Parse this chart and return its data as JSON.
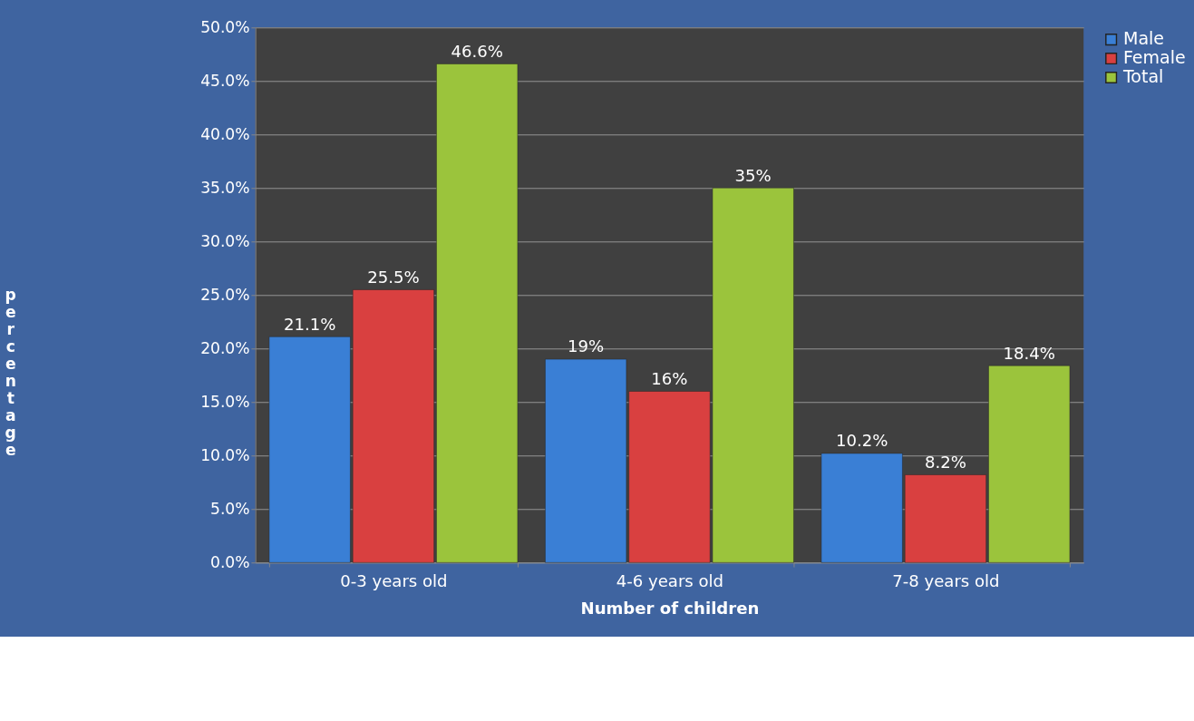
{
  "chart_data": {
    "type": "bar",
    "xlabel": "Number of children",
    "ylabel": "percentage",
    "categories": [
      "0-3 years old",
      "4-6 years old",
      "7-8 years old"
    ],
    "series": [
      {
        "name": "Male",
        "color": "#3a7fd5",
        "values": [
          21.1,
          19,
          10.2
        ],
        "value_labels": [
          "21.1%",
          "19%",
          "10.2%"
        ]
      },
      {
        "name": "Female",
        "color": "#d94040",
        "values": [
          25.5,
          16,
          8.2
        ],
        "value_labels": [
          "25.5%",
          "16%",
          "8.2%"
        ]
      },
      {
        "name": "Total",
        "color": "#9bc43c",
        "values": [
          46.6,
          35,
          18.4
        ],
        "value_labels": [
          "46.6%",
          "35%",
          "18.4%"
        ]
      }
    ],
    "ylim": [
      0,
      50
    ],
    "yticks": [
      {
        "value": 0,
        "label": "0.0%"
      },
      {
        "value": 5,
        "label": "5.0%"
      },
      {
        "value": 10,
        "label": "10.0%"
      },
      {
        "value": 15,
        "label": "15.0%"
      },
      {
        "value": 20,
        "label": "20.0%"
      },
      {
        "value": 25,
        "label": "25.0%"
      },
      {
        "value": 30,
        "label": "30.0%"
      },
      {
        "value": 35,
        "label": "35.0%"
      },
      {
        "value": 40,
        "label": "40.0%"
      },
      {
        "value": 45,
        "label": "45.0%"
      },
      {
        "value": 50,
        "label": "50.0%"
      }
    ],
    "grid": "y",
    "legend": "right"
  }
}
